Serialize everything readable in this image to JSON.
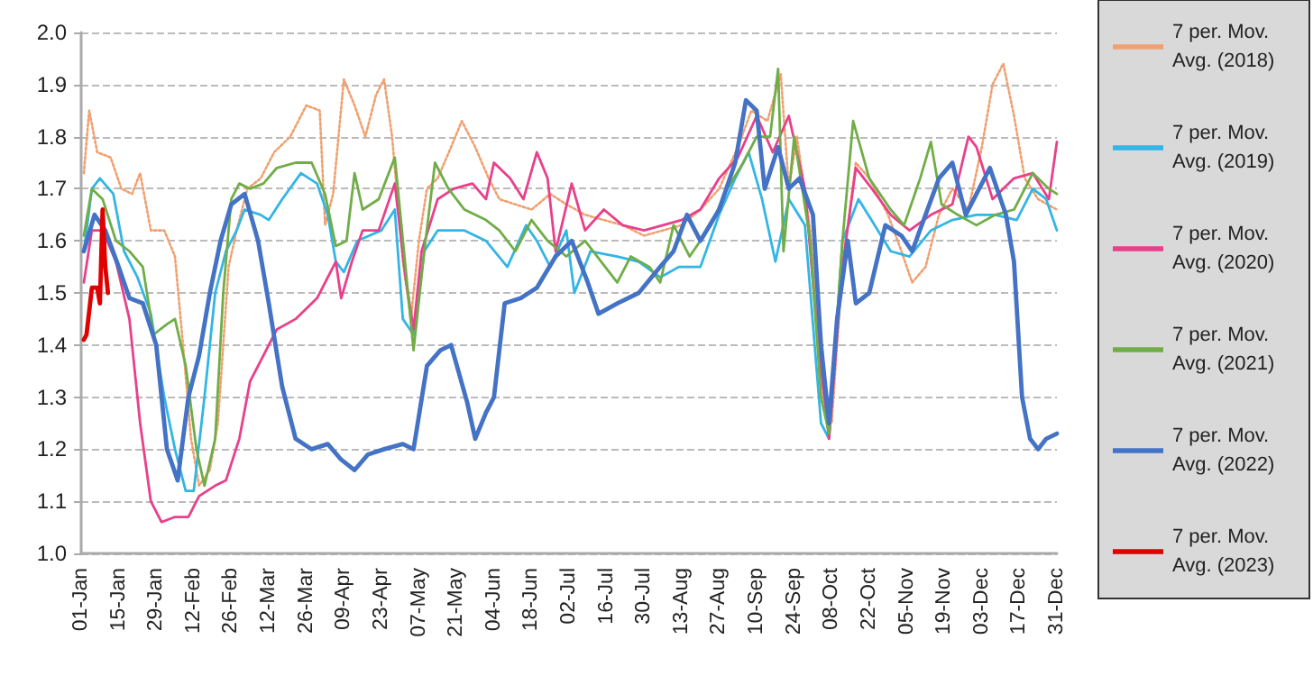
{
  "chart_data": {
    "type": "line",
    "legend": "right",
    "grid": "y",
    "xlim": [
      "--01-01",
      "--12-31"
    ],
    "xticks": [
      {
        "value": "--01-01",
        "label": "01-Jan"
      },
      {
        "value": "--01-15",
        "label": "15-Jan"
      },
      {
        "value": "--01-29",
        "label": "29-Jan"
      },
      {
        "value": "--02-12",
        "label": "12-Feb"
      },
      {
        "value": "--02-26",
        "label": "26-Feb"
      },
      {
        "value": "--03-12",
        "label": "12-Mar"
      },
      {
        "value": "--03-26",
        "label": "26-Mar"
      },
      {
        "value": "--04-09",
        "label": "09-Apr"
      },
      {
        "value": "--04-23",
        "label": "23-Apr"
      },
      {
        "value": "--05-07",
        "label": "07-May"
      },
      {
        "value": "--05-21",
        "label": "21-May"
      },
      {
        "value": "--06-04",
        "label": "04-Jun"
      },
      {
        "value": "--06-18",
        "label": "18-Jun"
      },
      {
        "value": "--07-02",
        "label": "02-Jul"
      },
      {
        "value": "--07-16",
        "label": "16-Jul"
      },
      {
        "value": "--07-30",
        "label": "30-Jul"
      },
      {
        "value": "--08-13",
        "label": "13-Aug"
      },
      {
        "value": "--08-27",
        "label": "27-Aug"
      },
      {
        "value": "--09-10",
        "label": "10-Sep"
      },
      {
        "value": "--09-24",
        "label": "24-Sep"
      },
      {
        "value": "--10-08",
        "label": "08-Oct"
      },
      {
        "value": "--10-22",
        "label": "22-Oct"
      },
      {
        "value": "--11-05",
        "label": "05-Nov"
      },
      {
        "value": "--11-19",
        "label": "19-Nov"
      },
      {
        "value": "--12-03",
        "label": "03-Dec"
      },
      {
        "value": "--12-17",
        "label": "17-Dec"
      },
      {
        "value": "--12-31",
        "label": "31-Dec"
      }
    ],
    "ylim": [
      1.0,
      2.0
    ],
    "yticks": [
      {
        "value": 1.0,
        "label": "1.0"
      },
      {
        "value": 1.1,
        "label": "1.1"
      },
      {
        "value": 1.2,
        "label": "1.2"
      },
      {
        "value": 1.3,
        "label": "1.3"
      },
      {
        "value": 1.4,
        "label": "1.4"
      },
      {
        "value": 1.5,
        "label": "1.5"
      },
      {
        "value": 1.6,
        "label": "1.6"
      },
      {
        "value": 1.7,
        "label": "1.7"
      },
      {
        "value": 1.8,
        "label": "1.8"
      },
      {
        "value": 1.9,
        "label": "1.9"
      },
      {
        "value": 2.0,
        "label": "2.0"
      }
    ],
    "series": [
      {
        "name": "7 per. Mov. Avg. (2018)",
        "color": "#f0a070",
        "line_style": "dotted",
        "x": [
          "--01-02",
          "--01-04",
          "--01-07",
          "--01-12",
          "--01-16",
          "--01-20",
          "--01-23",
          "--01-27",
          "--02-01",
          "--02-05",
          "--02-08",
          "--02-11",
          "--02-14",
          "--02-18",
          "--02-21",
          "--02-25",
          "--02-28",
          "--03-04",
          "--03-09",
          "--03-14",
          "--03-20",
          "--03-26",
          "--03-31",
          "--04-02",
          "--04-05",
          "--04-09",
          "--04-13",
          "--04-17",
          "--04-21",
          "--04-24",
          "--04-27",
          "--05-01",
          "--05-04",
          "--05-07",
          "--05-10",
          "--05-14",
          "--05-19",
          "--05-23",
          "--05-28",
          "--06-02",
          "--06-06",
          "--06-12",
          "--06-18",
          "--06-25",
          "--07-01",
          "--07-08",
          "--07-15",
          "--07-22",
          "--07-30",
          "--08-06",
          "--08-13",
          "--08-20",
          "--08-27",
          "--09-03",
          "--09-08",
          "--09-14",
          "--09-19",
          "--09-22",
          "--09-25",
          "--09-30",
          "--10-05",
          "--10-08",
          "--10-12",
          "--10-17",
          "--10-22",
          "--10-29",
          "--11-03",
          "--11-07",
          "--11-12",
          "--11-17",
          "--11-22",
          "--11-28",
          "--12-03",
          "--12-07",
          "--12-11",
          "--12-15",
          "--12-19",
          "--12-24",
          "--12-31"
        ],
        "values": [
          1.73,
          1.85,
          1.77,
          1.76,
          1.7,
          1.69,
          1.73,
          1.62,
          1.62,
          1.57,
          1.4,
          1.22,
          1.13,
          1.16,
          1.25,
          1.55,
          1.62,
          1.7,
          1.72,
          1.77,
          1.8,
          1.86,
          1.85,
          1.63,
          1.69,
          1.91,
          1.86,
          1.8,
          1.88,
          1.91,
          1.8,
          1.56,
          1.45,
          1.6,
          1.7,
          1.72,
          1.78,
          1.83,
          1.78,
          1.72,
          1.68,
          1.67,
          1.66,
          1.69,
          1.67,
          1.65,
          1.64,
          1.63,
          1.61,
          1.62,
          1.63,
          1.66,
          1.7,
          1.78,
          1.85,
          1.83,
          1.92,
          1.7,
          1.8,
          1.62,
          1.3,
          1.25,
          1.55,
          1.75,
          1.72,
          1.65,
          1.58,
          1.52,
          1.55,
          1.65,
          1.7,
          1.66,
          1.78,
          1.9,
          1.94,
          1.84,
          1.72,
          1.68,
          1.66
        ]
      },
      {
        "name": "7 per. Mov. Avg. (2019)",
        "color": "#33b5e5",
        "line_style": "solid",
        "x": [
          "--01-02",
          "--01-05",
          "--01-08",
          "--01-13",
          "--01-17",
          "--01-22",
          "--01-27",
          "--02-01",
          "--02-05",
          "--02-09",
          "--02-12",
          "--02-16",
          "--02-20",
          "--02-24",
          "--02-28",
          "--03-03",
          "--03-09",
          "--03-12",
          "--03-17",
          "--03-24",
          "--03-30",
          "--04-03",
          "--04-06",
          "--04-09",
          "--04-14",
          "--04-23",
          "--04-28",
          "--05-01",
          "--05-05",
          "--05-09",
          "--05-14",
          "--05-24",
          "--06-01",
          "--06-09",
          "--06-16",
          "--06-20",
          "--06-25",
          "--07-01",
          "--07-04",
          "--07-10",
          "--07-20",
          "--07-28",
          "--08-05",
          "--08-12",
          "--08-20",
          "--08-27",
          "--09-02",
          "--09-07",
          "--09-12",
          "--09-17",
          "--09-22",
          "--09-28",
          "--10-04",
          "--10-07",
          "--10-12",
          "--10-18",
          "--10-24",
          "--10-30",
          "--11-06",
          "--11-14",
          "--11-22",
          "--12-01",
          "--12-08",
          "--12-16",
          "--12-22",
          "--12-27",
          "--12-31"
        ],
        "values": [
          1.58,
          1.7,
          1.72,
          1.69,
          1.58,
          1.53,
          1.46,
          1.3,
          1.2,
          1.12,
          1.12,
          1.3,
          1.5,
          1.58,
          1.62,
          1.66,
          1.65,
          1.64,
          1.68,
          1.73,
          1.71,
          1.65,
          1.56,
          1.54,
          1.6,
          1.62,
          1.66,
          1.45,
          1.42,
          1.58,
          1.62,
          1.62,
          1.6,
          1.55,
          1.63,
          1.6,
          1.55,
          1.62,
          1.5,
          1.58,
          1.57,
          1.56,
          1.53,
          1.55,
          1.55,
          1.65,
          1.72,
          1.77,
          1.68,
          1.56,
          1.68,
          1.63,
          1.25,
          1.22,
          1.6,
          1.68,
          1.63,
          1.58,
          1.57,
          1.62,
          1.64,
          1.65,
          1.65,
          1.64,
          1.7,
          1.68,
          1.62
        ]
      },
      {
        "name": "7 per. Mov. Avg. (2020)",
        "color": "#e8408a",
        "line_style": "solid",
        "x": [
          "--01-02",
          "--01-05",
          "--01-09",
          "--01-14",
          "--01-19",
          "--01-23",
          "--01-27",
          "--01-31",
          "--02-05",
          "--02-10",
          "--02-14",
          "--02-20",
          "--02-24",
          "--03-01",
          "--03-05",
          "--03-10",
          "--03-15",
          "--03-22",
          "--03-30",
          "--04-06",
          "--04-08",
          "--04-12",
          "--04-16",
          "--04-22",
          "--04-28",
          "--05-02",
          "--05-05",
          "--05-08",
          "--05-14",
          "--05-20",
          "--05-27",
          "--06-01",
          "--06-04",
          "--06-10",
          "--06-15",
          "--06-20",
          "--06-24",
          "--06-27",
          "--07-03",
          "--07-08",
          "--07-15",
          "--07-22",
          "--07-30",
          "--08-06",
          "--08-13",
          "--08-20",
          "--08-27",
          "--09-03",
          "--09-10",
          "--09-16",
          "--09-22",
          "--09-28",
          "--10-03",
          "--10-07",
          "--10-12",
          "--10-17",
          "--10-23",
          "--10-30",
          "--11-06",
          "--11-14",
          "--11-22",
          "--11-28",
          "--12-01",
          "--12-07",
          "--12-15",
          "--12-22",
          "--12-28",
          "--12-31"
        ],
        "values": [
          1.52,
          1.62,
          1.62,
          1.56,
          1.45,
          1.25,
          1.1,
          1.06,
          1.07,
          1.07,
          1.11,
          1.13,
          1.14,
          1.22,
          1.33,
          1.38,
          1.43,
          1.45,
          1.49,
          1.56,
          1.49,
          1.56,
          1.62,
          1.62,
          1.71,
          1.53,
          1.43,
          1.58,
          1.68,
          1.7,
          1.71,
          1.68,
          1.75,
          1.72,
          1.68,
          1.77,
          1.72,
          1.58,
          1.71,
          1.62,
          1.66,
          1.63,
          1.62,
          1.63,
          1.64,
          1.66,
          1.72,
          1.76,
          1.84,
          1.77,
          1.84,
          1.7,
          1.4,
          1.22,
          1.55,
          1.74,
          1.7,
          1.65,
          1.62,
          1.65,
          1.67,
          1.8,
          1.78,
          1.68,
          1.72,
          1.73,
          1.68,
          1.79
        ]
      },
      {
        "name": "7 per. Mov. Avg. (2021)",
        "color": "#70ad47",
        "line_style": "solid",
        "x": [
          "--01-02",
          "--01-05",
          "--01-09",
          "--01-14",
          "--01-19",
          "--01-24",
          "--01-28",
          "--02-02",
          "--02-05",
          "--02-09",
          "--02-13",
          "--02-16",
          "--02-20",
          "--02-23",
          "--02-26",
          "--03-01",
          "--03-05",
          "--03-10",
          "--03-15",
          "--03-22",
          "--03-28",
          "--04-02",
          "--04-06",
          "--04-10",
          "--04-13",
          "--04-16",
          "--04-22",
          "--04-28",
          "--05-02",
          "--05-05",
          "--05-09",
          "--05-13",
          "--05-18",
          "--05-24",
          "--06-01",
          "--06-06",
          "--06-12",
          "--06-18",
          "--06-24",
          "--07-01",
          "--07-08",
          "--07-14",
          "--07-20",
          "--07-25",
          "--08-01",
          "--08-05",
          "--08-10",
          "--08-16",
          "--08-24",
          "--08-30",
          "--09-05",
          "--09-10",
          "--09-15",
          "--09-18",
          "--09-20",
          "--09-24",
          "--09-30",
          "--10-04",
          "--10-07",
          "--10-12",
          "--10-16",
          "--10-22",
          "--10-30",
          "--11-04",
          "--11-10",
          "--11-14",
          "--11-18",
          "--11-24",
          "--12-01",
          "--12-08",
          "--12-15",
          "--12-22",
          "--12-28",
          "--12-31"
        ],
        "values": [
          1.61,
          1.7,
          1.68,
          1.6,
          1.58,
          1.55,
          1.42,
          1.44,
          1.45,
          1.36,
          1.2,
          1.13,
          1.22,
          1.5,
          1.68,
          1.71,
          1.7,
          1.71,
          1.74,
          1.75,
          1.75,
          1.69,
          1.59,
          1.6,
          1.73,
          1.66,
          1.68,
          1.76,
          1.55,
          1.39,
          1.58,
          1.75,
          1.7,
          1.66,
          1.64,
          1.62,
          1.58,
          1.64,
          1.6,
          1.57,
          1.6,
          1.56,
          1.52,
          1.57,
          1.55,
          1.52,
          1.63,
          1.57,
          1.63,
          1.7,
          1.75,
          1.8,
          1.8,
          1.93,
          1.58,
          1.8,
          1.6,
          1.3,
          1.23,
          1.6,
          1.83,
          1.72,
          1.66,
          1.63,
          1.72,
          1.79,
          1.67,
          1.65,
          1.63,
          1.65,
          1.66,
          1.73,
          1.7,
          1.69
        ]
      },
      {
        "name": "7 per. Mov. Avg. (2022)",
        "color": "#4472c4",
        "line_style": "solid",
        "x": [
          "--01-02",
          "--01-06",
          "--01-10",
          "--01-15",
          "--01-19",
          "--01-24",
          "--01-29",
          "--02-02",
          "--02-06",
          "--02-10",
          "--02-14",
          "--02-18",
          "--02-22",
          "--02-26",
          "--03-03",
          "--03-08",
          "--03-12",
          "--03-17",
          "--03-22",
          "--03-28",
          "--04-03",
          "--04-08",
          "--04-13",
          "--04-18",
          "--04-24",
          "--05-01",
          "--05-05",
          "--05-10",
          "--05-15",
          "--05-19",
          "--05-25",
          "--05-28",
          "--06-01",
          "--06-04",
          "--06-08",
          "--06-14",
          "--06-20",
          "--06-27",
          "--07-03",
          "--07-09",
          "--07-13",
          "--07-20",
          "--07-28",
          "--08-05",
          "--08-10",
          "--08-15",
          "--08-20",
          "--08-27",
          "--09-02",
          "--09-06",
          "--09-10",
          "--09-13",
          "--09-18",
          "--09-22",
          "--09-26",
          "--10-01",
          "--10-04",
          "--10-07",
          "--10-10",
          "--10-14",
          "--10-17",
          "--10-22",
          "--10-28",
          "--11-03",
          "--11-07",
          "--11-12",
          "--11-17",
          "--11-22",
          "--11-27",
          "--12-02",
          "--12-06",
          "--12-12",
          "--12-15",
          "--12-18",
          "--12-21",
          "--12-24",
          "--12-27",
          "--12-31"
        ],
        "values": [
          1.58,
          1.65,
          1.62,
          1.55,
          1.49,
          1.48,
          1.4,
          1.2,
          1.14,
          1.3,
          1.38,
          1.5,
          1.6,
          1.67,
          1.69,
          1.6,
          1.48,
          1.32,
          1.22,
          1.2,
          1.21,
          1.18,
          1.16,
          1.19,
          1.2,
          1.21,
          1.2,
          1.36,
          1.39,
          1.4,
          1.29,
          1.22,
          1.27,
          1.3,
          1.48,
          1.49,
          1.51,
          1.57,
          1.6,
          1.52,
          1.46,
          1.48,
          1.5,
          1.55,
          1.58,
          1.65,
          1.6,
          1.66,
          1.75,
          1.87,
          1.85,
          1.7,
          1.78,
          1.7,
          1.72,
          1.65,
          1.4,
          1.25,
          1.45,
          1.6,
          1.48,
          1.5,
          1.63,
          1.61,
          1.58,
          1.65,
          1.72,
          1.75,
          1.65,
          1.7,
          1.74,
          1.65,
          1.56,
          1.3,
          1.22,
          1.2,
          1.22,
          1.23
        ]
      },
      {
        "name": "7 per. Mov. Avg. (2023)",
        "color": "#e00000",
        "line_style": "solid",
        "x": [
          "--01-02",
          "--01-03",
          "--01-05",
          "--01-07",
          "--01-08",
          "--01-09",
          "--01-10",
          "--01-11"
        ],
        "values": [
          1.41,
          1.42,
          1.51,
          1.51,
          1.48,
          1.66,
          1.55,
          1.5
        ]
      }
    ]
  }
}
